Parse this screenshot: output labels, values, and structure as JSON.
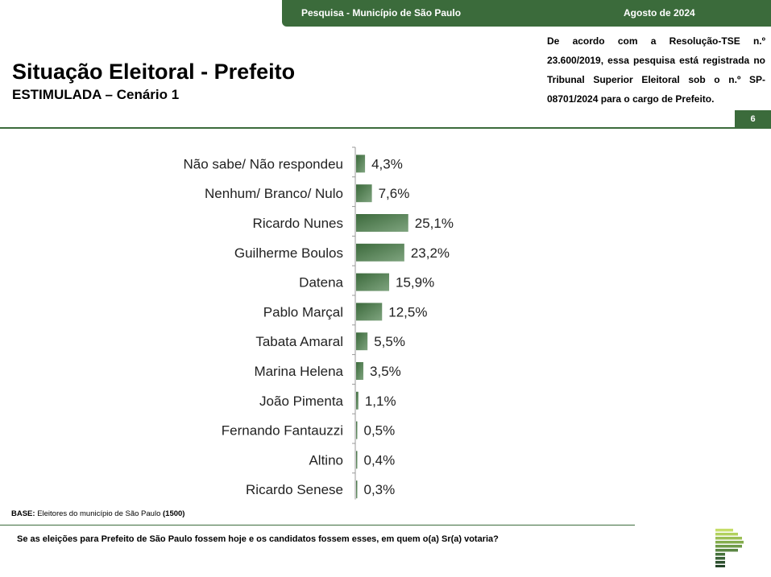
{
  "header": {
    "survey": "Pesquisa - Município de São Paulo",
    "date": "Agosto de 2024"
  },
  "title": "Situação Eleitoral - Prefeito",
  "subtitle": "ESTIMULADA – Cenário 1",
  "notice": "De acordo com a Resolução-TSE n.º 23.600/2019, essa pesquisa está registrada no Tribunal Superior Eleitoral sob o n.º SP-08701/2024 para o cargo de Prefeito.",
  "page_number": "6",
  "base": {
    "label": "BASE:",
    "text": "Eleitores do município de São Paulo",
    "count": "(1500)"
  },
  "question": "Se as eleições para Prefeito de São Paulo fossem hoje e os candidatos fossem esses, em quem o(a) Sr(a) votaria?",
  "colors": {
    "brand_green": "#3b6b3b",
    "bar_dark": "#3c6a3c",
    "bar_light": "#7fa47f"
  },
  "chart_data": {
    "type": "bar",
    "orientation": "horizontal",
    "categories": [
      "Não sabe/ Não respondeu",
      "Nenhum/ Branco/ Nulo",
      "Ricardo Nunes",
      "Guilherme Boulos",
      "Datena",
      "Pablo Marçal",
      "Tabata Amaral",
      "Marina Helena",
      "João Pimenta",
      "Fernando Fantauzzi",
      "Altino",
      "Ricardo Senese"
    ],
    "values": [
      4.3,
      7.6,
      25.1,
      23.2,
      15.9,
      12.5,
      5.5,
      3.5,
      1.1,
      0.5,
      0.4,
      0.3
    ],
    "value_labels": [
      "4,3%",
      "7,6%",
      "25,1%",
      "23,2%",
      "15,9%",
      "12,5%",
      "5,5%",
      "3,5%",
      "1,1%",
      "0,5%",
      "0,4%",
      "0,3%"
    ],
    "unit": "%",
    "grid": false,
    "legend": "none"
  }
}
